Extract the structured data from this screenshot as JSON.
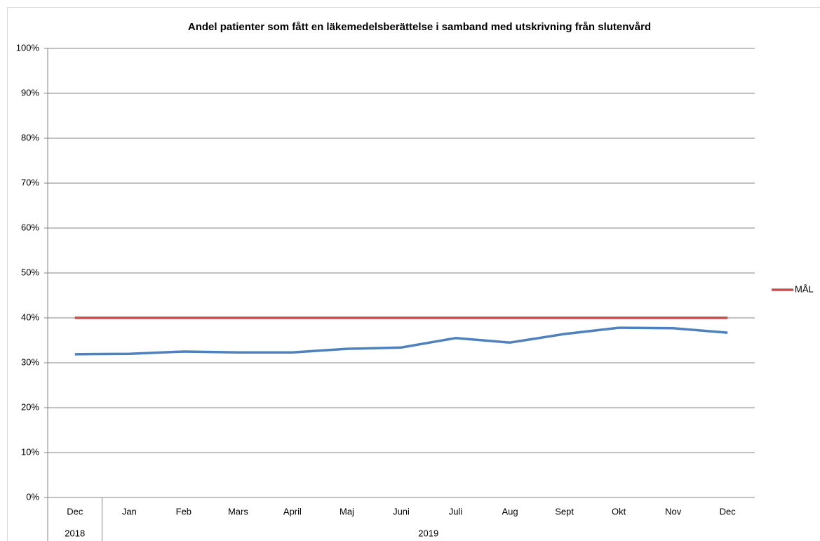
{
  "chart_data": {
    "type": "line",
    "title": "Andel patienter som fått en läkemedelsberättelse i samband med utskrivning från slutenvård",
    "categories": [
      "Dec",
      "Jan",
      "Feb",
      "Mars",
      "April",
      "Maj",
      "Juni",
      "Juli",
      "Aug",
      "Sept",
      "Okt",
      "Nov",
      "Dec"
    ],
    "category_groups": [
      {
        "label": "2018",
        "count": 1
      },
      {
        "label": "2019",
        "count": 12
      }
    ],
    "series": [
      {
        "color": "#4f81bd",
        "values": [
          31.9,
          32.0,
          32.5,
          32.3,
          32.3,
          33.1,
          33.4,
          35.5,
          34.5,
          36.4,
          37.8,
          37.7,
          36.7
        ]
      },
      {
        "name": "MÅL",
        "color": "#c0504d",
        "values": [
          40,
          40,
          40,
          40,
          40,
          40,
          40,
          40,
          40,
          40,
          40,
          40,
          40
        ]
      }
    ],
    "ylim": [
      0,
      100
    ],
    "yticks": [
      {
        "value": 0,
        "label": "0%"
      },
      {
        "value": 10,
        "label": "10%"
      },
      {
        "value": 20,
        "label": "20%"
      },
      {
        "value": 30,
        "label": "30%"
      },
      {
        "value": 40,
        "label": "40%"
      },
      {
        "value": 50,
        "label": "50%"
      },
      {
        "value": 60,
        "label": "60%"
      },
      {
        "value": 70,
        "label": "70%"
      },
      {
        "value": 80,
        "label": "80%"
      },
      {
        "value": 90,
        "label": "90%"
      },
      {
        "value": 100,
        "label": "100%"
      }
    ],
    "grid": true,
    "legend": "right"
  }
}
